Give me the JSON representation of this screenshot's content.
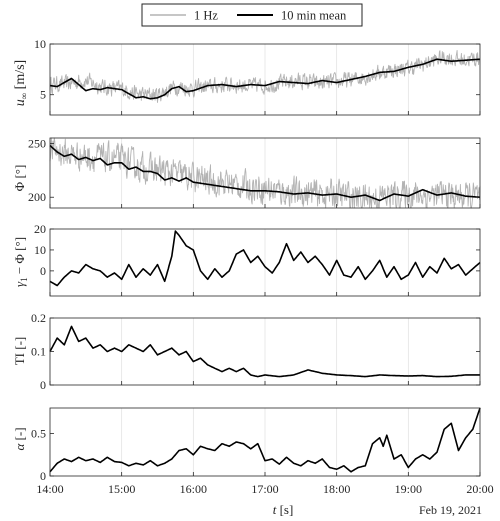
{
  "chart_data": {
    "type": "line",
    "legend": {
      "placement": "top-center",
      "entries": [
        {
          "label": "1 Hz",
          "color": "#b3b3b3"
        },
        {
          "label": "10 min mean",
          "color": "#000000"
        }
      ]
    },
    "x": {
      "label": "t [s]",
      "date_label": "Feb 19, 2021",
      "range": [
        14.0,
        20.0
      ],
      "ticks": [
        14,
        15,
        16,
        17,
        18,
        19,
        20
      ],
      "tick_labels": [
        "14:00",
        "15:00",
        "16:00",
        "17:00",
        "18:00",
        "19:00",
        "20:00"
      ],
      "grid": true
    },
    "panels": [
      {
        "ylabel": "u∞ [m/s]",
        "ylim": [
          3.0,
          10.0
        ],
        "yticks": [
          5,
          10
        ],
        "series": [
          {
            "name": "1 Hz",
            "x": [
              14.0,
              14.25,
              14.5,
              14.75,
              15.0,
              15.25,
              15.5,
              15.75,
              16.0,
              16.25,
              16.5,
              16.75,
              17.0,
              17.25,
              17.5,
              17.75,
              18.0,
              18.25,
              18.5,
              18.75,
              19.0,
              19.25,
              19.5,
              19.75,
              20.0
            ],
            "y": [
              6.0,
              6.1,
              6.4,
              5.7,
              5.6,
              5.0,
              5.0,
              5.8,
              5.6,
              5.8,
              6.0,
              5.9,
              5.9,
              6.2,
              6.4,
              6.1,
              6.3,
              6.5,
              7.0,
              7.4,
              7.6,
              8.1,
              8.7,
              8.4,
              8.6
            ],
            "amp": 0.7
          },
          {
            "name": "10 min mean",
            "x": [
              14.0,
              14.1,
              14.2,
              14.3,
              14.4,
              14.5,
              14.6,
              14.7,
              14.8,
              14.9,
              15.0,
              15.1,
              15.2,
              15.3,
              15.4,
              15.5,
              15.6,
              15.7,
              15.8,
              15.9,
              16.0,
              16.2,
              16.4,
              16.6,
              16.8,
              17.0,
              17.2,
              17.4,
              17.6,
              17.8,
              18.0,
              18.2,
              18.4,
              18.6,
              18.8,
              19.0,
              19.2,
              19.4,
              19.6,
              19.8,
              20.0
            ],
            "y": [
              5.9,
              5.8,
              6.2,
              6.6,
              6.0,
              5.4,
              5.6,
              5.5,
              5.7,
              5.6,
              5.5,
              5.1,
              4.7,
              4.8,
              4.6,
              4.7,
              5.0,
              5.6,
              5.8,
              5.3,
              5.4,
              5.9,
              6.0,
              5.8,
              6.0,
              5.9,
              6.3,
              6.2,
              6.1,
              6.4,
              6.2,
              6.5,
              6.8,
              7.2,
              7.3,
              7.7,
              8.0,
              8.5,
              8.3,
              8.4,
              8.5
            ]
          }
        ]
      },
      {
        "ylabel": "Φ [°]",
        "ylim": [
          190,
          255
        ],
        "yticks": [
          200,
          250
        ],
        "series": [
          {
            "name": "1 Hz",
            "x": [
              14.0,
              14.25,
              14.5,
              14.75,
              15.0,
              15.25,
              15.5,
              15.75,
              16.0,
              16.25,
              16.5,
              16.75,
              17.0,
              17.25,
              17.5,
              17.75,
              18.0,
              18.25,
              18.5,
              18.75,
              19.0,
              19.25,
              19.5,
              19.75,
              20.0
            ],
            "y": [
              245,
              240,
              238,
              236,
              235,
              228,
              225,
              222,
              218,
              215,
              213,
              210,
              208,
              205,
              204,
              203,
              203,
              200,
              199,
              201,
              203,
              202,
              202,
              201,
              200
            ],
            "amp": 12
          },
          {
            "name": "10 min mean",
            "x": [
              14.0,
              14.1,
              14.2,
              14.3,
              14.4,
              14.5,
              14.6,
              14.7,
              14.8,
              14.9,
              15.0,
              15.1,
              15.2,
              15.3,
              15.4,
              15.5,
              15.6,
              15.7,
              15.8,
              15.9,
              16.0,
              16.2,
              16.4,
              16.6,
              16.8,
              17.0,
              17.2,
              17.4,
              17.6,
              17.8,
              18.0,
              18.2,
              18.4,
              18.6,
              18.8,
              19.0,
              19.2,
              19.4,
              19.6,
              19.8,
              20.0
            ],
            "y": [
              248,
              242,
              238,
              240,
              235,
              237,
              234,
              236,
              230,
              232,
              232,
              226,
              228,
              224,
              224,
              222,
              216,
              218,
              215,
              218,
              214,
              212,
              210,
              208,
              206,
              206,
              205,
              203,
              204,
              202,
              203,
              200,
              202,
              197,
              203,
              201,
              207,
              202,
              204,
              201,
              200
            ]
          }
        ]
      },
      {
        "ylabel": "γ1 − Φ [°]",
        "ylim": [
          -12,
          20
        ],
        "yticks": [
          0,
          10,
          20
        ],
        "series": [
          {
            "name": "10 min mean",
            "x": [
              14.0,
              14.1,
              14.2,
              14.3,
              14.4,
              14.5,
              14.6,
              14.7,
              14.8,
              14.9,
              15.0,
              15.1,
              15.2,
              15.3,
              15.4,
              15.5,
              15.6,
              15.7,
              15.75,
              15.8,
              15.9,
              16.0,
              16.1,
              16.2,
              16.3,
              16.4,
              16.5,
              16.6,
              16.7,
              16.8,
              16.9,
              17.0,
              17.1,
              17.2,
              17.3,
              17.4,
              17.5,
              17.6,
              17.7,
              17.8,
              17.9,
              18.0,
              18.1,
              18.2,
              18.3,
              18.4,
              18.5,
              18.6,
              18.7,
              18.8,
              18.9,
              19.0,
              19.1,
              19.2,
              19.3,
              19.4,
              19.5,
              19.6,
              19.7,
              19.8,
              19.9,
              20.0
            ],
            "y": [
              -5,
              -7,
              -3,
              0,
              -1,
              3,
              1,
              0,
              -3,
              -1,
              -4,
              3,
              -3,
              1,
              -2,
              3,
              -5,
              7,
              19,
              17,
              12,
              10,
              0,
              -4,
              1,
              -3,
              0,
              8,
              10,
              4,
              7,
              2,
              -1,
              4,
              13,
              5,
              9,
              4,
              7,
              3,
              -2,
              5,
              -2,
              -3,
              2,
              -4,
              0,
              5,
              -3,
              2,
              -4,
              -2,
              4,
              -3,
              2,
              -1,
              6,
              1,
              3,
              -2,
              1,
              4
            ]
          }
        ]
      },
      {
        "ylabel": "TI [-]",
        "ylim": [
          0.0,
          0.2
        ],
        "yticks": [
          0,
          0.1,
          0.2
        ],
        "series": [
          {
            "name": "10 min mean",
            "x": [
              14.0,
              14.1,
              14.2,
              14.3,
              14.4,
              14.5,
              14.6,
              14.7,
              14.8,
              14.9,
              15.0,
              15.1,
              15.2,
              15.3,
              15.4,
              15.5,
              15.6,
              15.7,
              15.8,
              15.9,
              16.0,
              16.1,
              16.2,
              16.3,
              16.4,
              16.5,
              16.6,
              16.7,
              16.8,
              16.9,
              17.0,
              17.2,
              17.4,
              17.6,
              17.8,
              18.0,
              18.2,
              18.4,
              18.6,
              18.8,
              19.0,
              19.2,
              19.4,
              19.6,
              19.8,
              20.0
            ],
            "y": [
              0.1,
              0.14,
              0.12,
              0.175,
              0.13,
              0.14,
              0.11,
              0.12,
              0.1,
              0.11,
              0.1,
              0.12,
              0.11,
              0.1,
              0.12,
              0.09,
              0.1,
              0.11,
              0.09,
              0.1,
              0.07,
              0.08,
              0.06,
              0.05,
              0.04,
              0.05,
              0.04,
              0.05,
              0.03,
              0.025,
              0.03,
              0.025,
              0.03,
              0.045,
              0.035,
              0.03,
              0.028,
              0.025,
              0.03,
              0.028,
              0.027,
              0.028,
              0.025,
              0.026,
              0.03,
              0.03
            ]
          }
        ]
      },
      {
        "ylabel": "α [-]",
        "ylim": [
          0.0,
          0.8
        ],
        "yticks": [
          0,
          0.5
        ],
        "series": [
          {
            "name": "10 min mean",
            "x": [
              14.0,
              14.1,
              14.2,
              14.3,
              14.4,
              14.5,
              14.6,
              14.7,
              14.8,
              14.9,
              15.0,
              15.1,
              15.2,
              15.3,
              15.4,
              15.5,
              15.6,
              15.7,
              15.8,
              15.9,
              16.0,
              16.1,
              16.2,
              16.3,
              16.4,
              16.5,
              16.6,
              16.7,
              16.8,
              16.9,
              17.0,
              17.1,
              17.2,
              17.3,
              17.4,
              17.5,
              17.6,
              17.7,
              17.8,
              17.9,
              18.0,
              18.1,
              18.2,
              18.3,
              18.4,
              18.5,
              18.6,
              18.65,
              18.7,
              18.8,
              18.9,
              19.0,
              19.1,
              19.2,
              19.3,
              19.4,
              19.5,
              19.6,
              19.7,
              19.8,
              19.9,
              20.0
            ],
            "y": [
              0.05,
              0.15,
              0.2,
              0.17,
              0.22,
              0.18,
              0.2,
              0.16,
              0.22,
              0.17,
              0.16,
              0.12,
              0.15,
              0.13,
              0.18,
              0.12,
              0.15,
              0.2,
              0.3,
              0.32,
              0.25,
              0.35,
              0.32,
              0.3,
              0.38,
              0.35,
              0.4,
              0.38,
              0.32,
              0.38,
              0.18,
              0.2,
              0.14,
              0.22,
              0.15,
              0.12,
              0.18,
              0.15,
              0.2,
              0.1,
              0.08,
              0.12,
              0.05,
              0.1,
              0.12,
              0.38,
              0.45,
              0.35,
              0.48,
              0.2,
              0.25,
              0.1,
              0.2,
              0.25,
              0.2,
              0.28,
              0.55,
              0.62,
              0.3,
              0.45,
              0.55,
              0.8
            ]
          }
        ]
      }
    ]
  }
}
